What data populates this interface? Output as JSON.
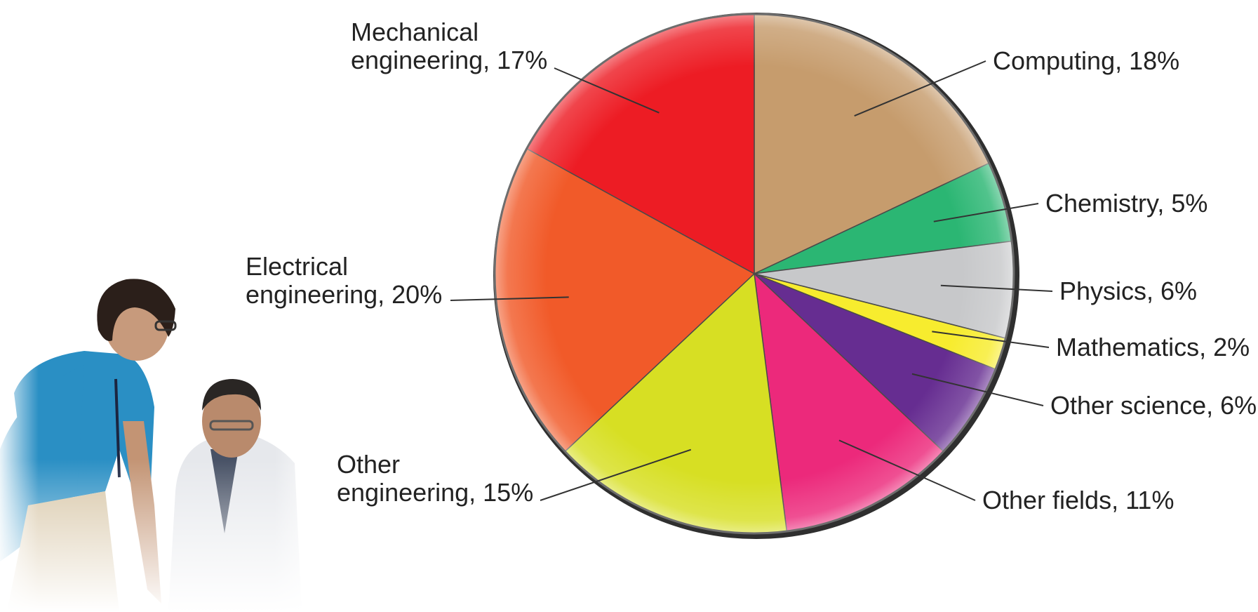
{
  "chart_data": {
    "type": "pie",
    "start_angle_deg": 0,
    "direction": "clockwise",
    "slices": [
      {
        "label": "Computing, 18%",
        "value": 18,
        "color": "#c69c6d"
      },
      {
        "label": "Chemistry, 5%",
        "value": 5,
        "color": "#2bb673"
      },
      {
        "label": "Physics, 6%",
        "value": 6,
        "color": "#c7c8ca"
      },
      {
        "label": "Mathematics, 2%",
        "value": 2,
        "color": "#f7ec2e"
      },
      {
        "label": "Other science, 6%",
        "value": 6,
        "color": "#662d91"
      },
      {
        "label": "Other fields, 11%",
        "value": 11,
        "color": "#ec297b"
      },
      {
        "label": "Other engineering, 15%",
        "value": 15,
        "color": "#d7df23"
      },
      {
        "label": "Electrical engineering, 20%",
        "value": 20,
        "color": "#f15a29"
      },
      {
        "label": "Mechanical engineering, 17%",
        "value": 17,
        "color": "#ed1c24"
      }
    ]
  }
}
